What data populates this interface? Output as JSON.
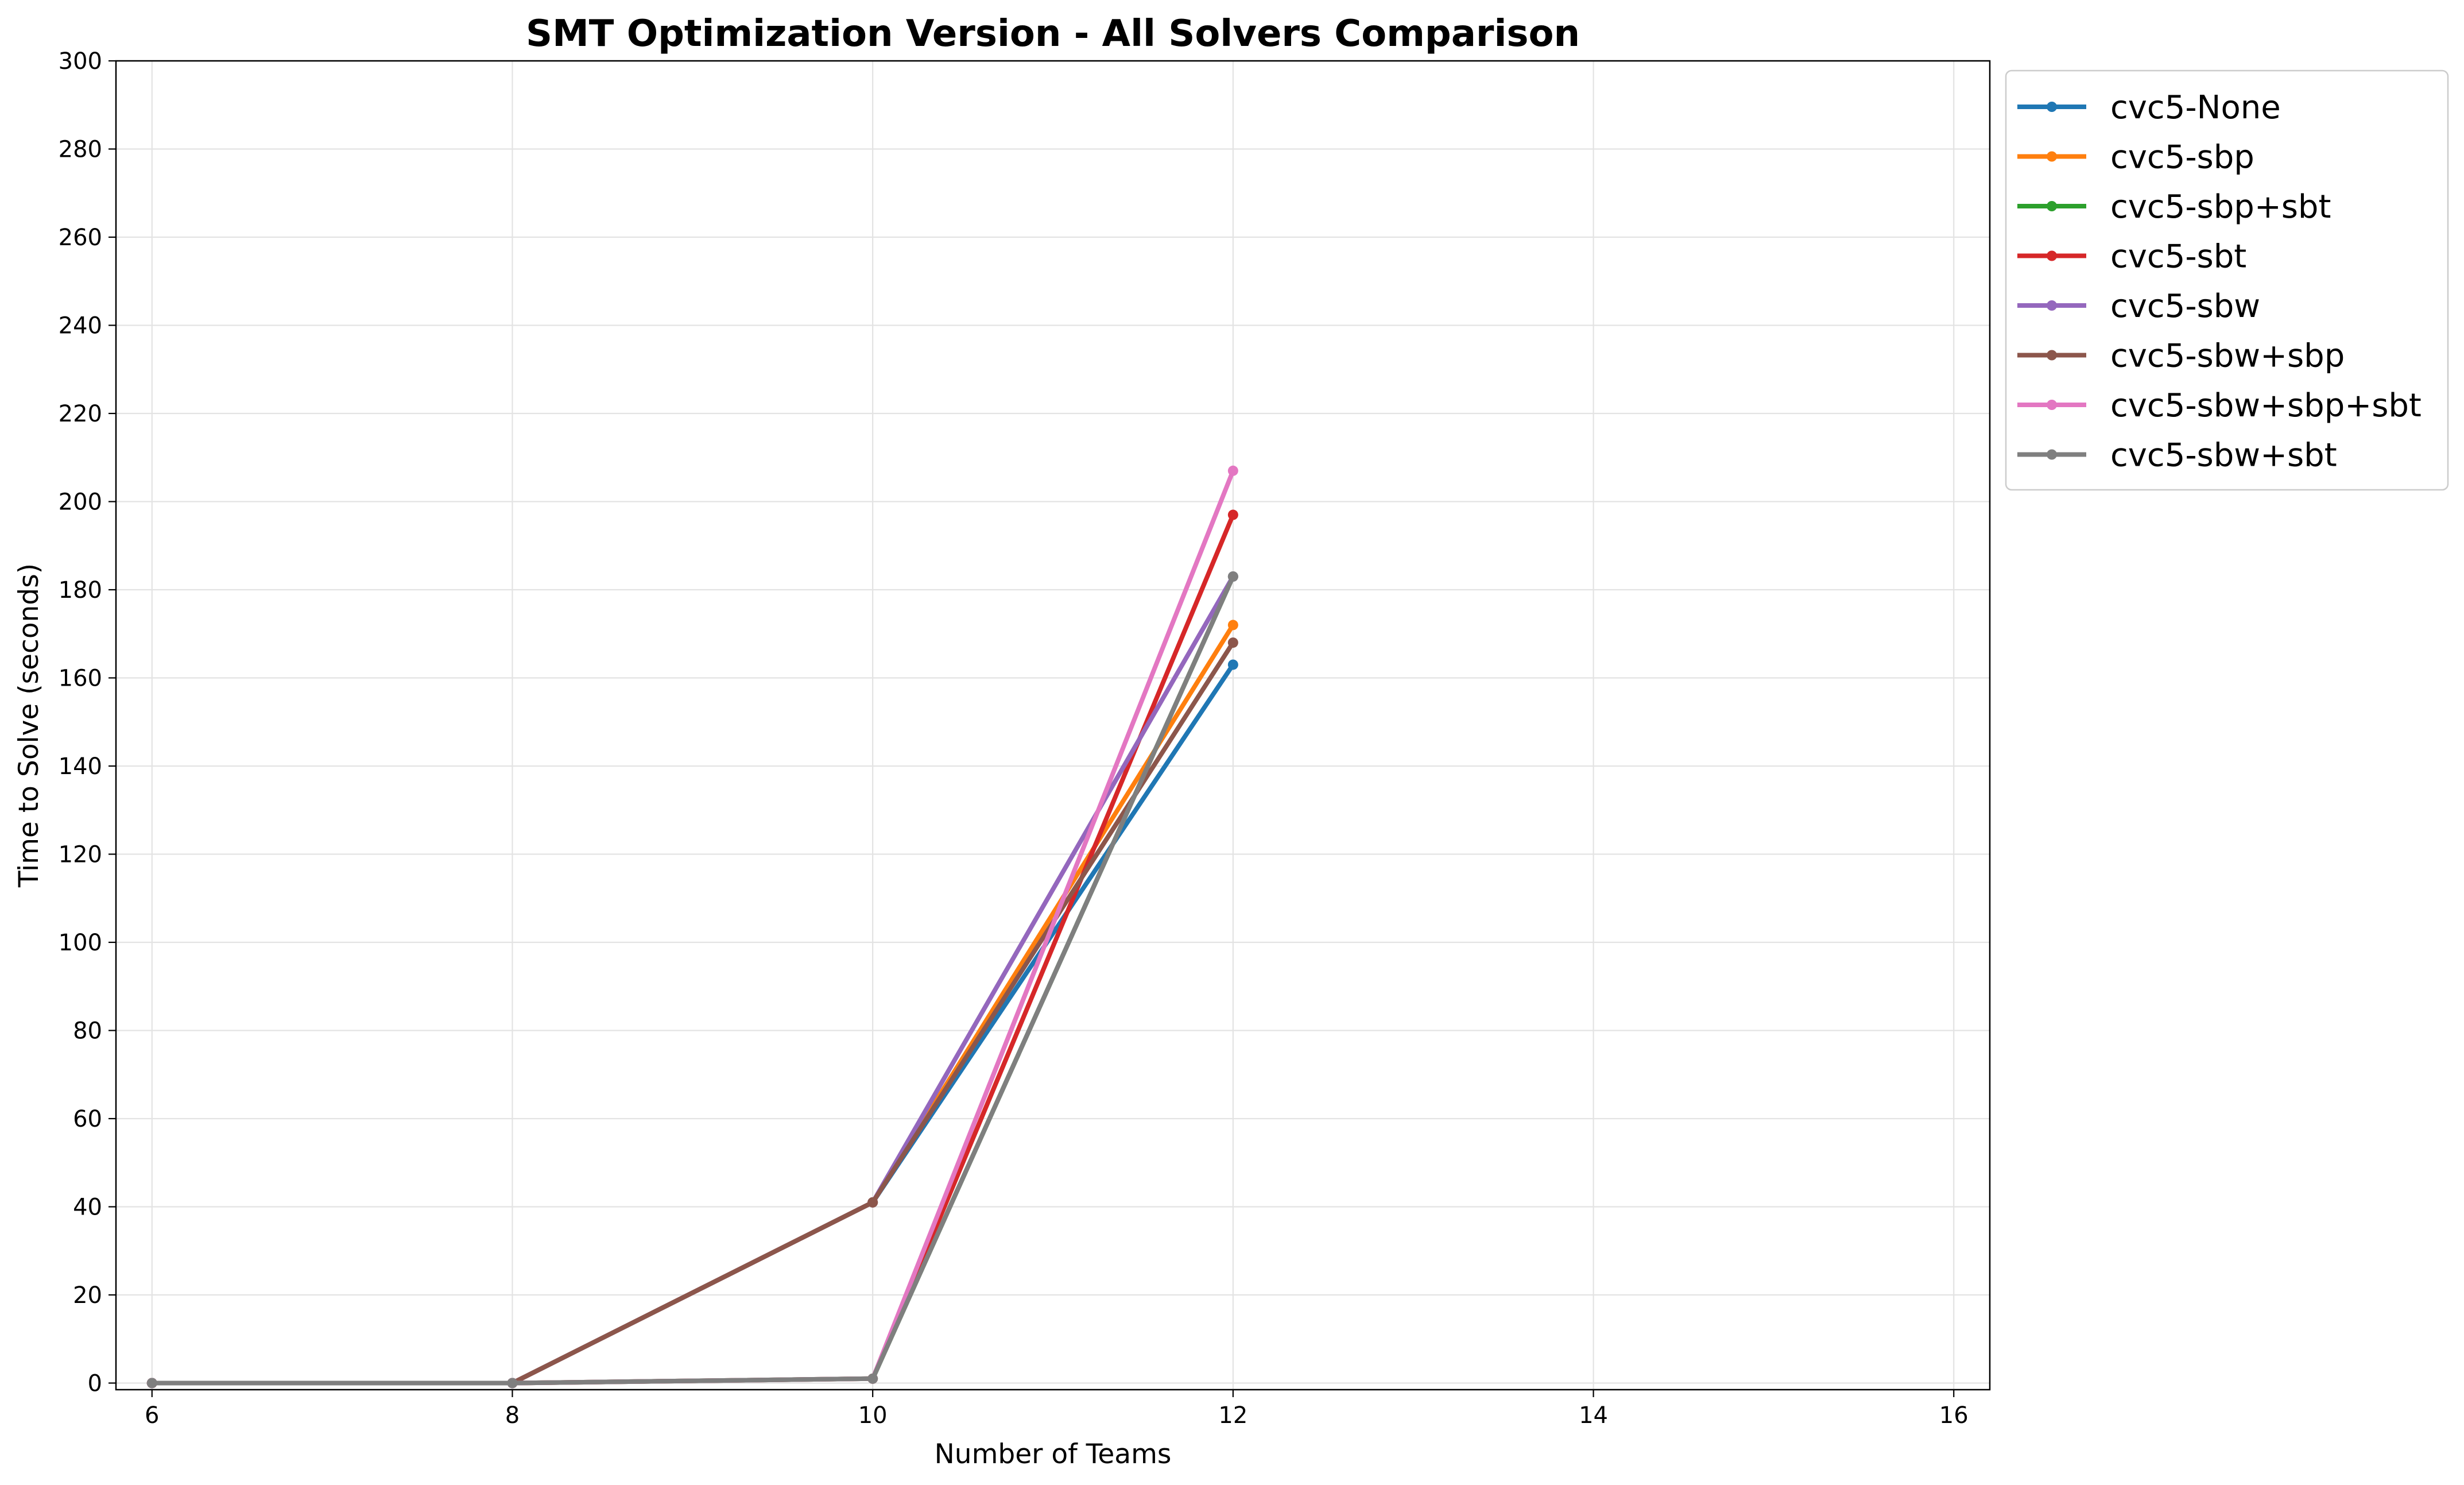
{
  "chart_data": {
    "type": "line",
    "title": "SMT Optimization Version - All Solvers Comparison",
    "xlabel": "Number of Teams",
    "ylabel": "Time to Solve (seconds)",
    "xlim": [
      5.8,
      16.2
    ],
    "ylim": [
      -1.5,
      300
    ],
    "xticks": [
      6,
      8,
      10,
      12,
      14,
      16
    ],
    "yticks": [
      0,
      20,
      40,
      60,
      80,
      100,
      120,
      140,
      160,
      180,
      200,
      220,
      240,
      260,
      280,
      300
    ],
    "grid": true,
    "legend_position": "outside-top-right",
    "x": [
      6,
      8,
      10,
      12
    ],
    "series": [
      {
        "name": "cvc5-None",
        "color": "#1f77b4",
        "values": [
          0,
          0,
          41,
          163
        ]
      },
      {
        "name": "cvc5-sbp",
        "color": "#ff7f0e",
        "values": [
          0,
          0,
          41,
          172
        ]
      },
      {
        "name": "cvc5-sbp+sbt",
        "color": "#2ca02c",
        "values": [
          0,
          0,
          1,
          183
        ]
      },
      {
        "name": "cvc5-sbt",
        "color": "#d62728",
        "values": [
          0,
          0,
          1,
          197
        ]
      },
      {
        "name": "cvc5-sbw",
        "color": "#9467bd",
        "values": [
          0,
          0,
          41,
          183
        ]
      },
      {
        "name": "cvc5-sbw+sbp",
        "color": "#8c564b",
        "values": [
          0,
          0,
          41,
          168
        ]
      },
      {
        "name": "cvc5-sbw+sbp+sbt",
        "color": "#e377c2",
        "values": [
          0,
          0,
          1,
          207
        ]
      },
      {
        "name": "cvc5-sbw+sbt",
        "color": "#7f7f7f",
        "values": [
          0,
          0,
          1,
          183
        ]
      }
    ]
  }
}
